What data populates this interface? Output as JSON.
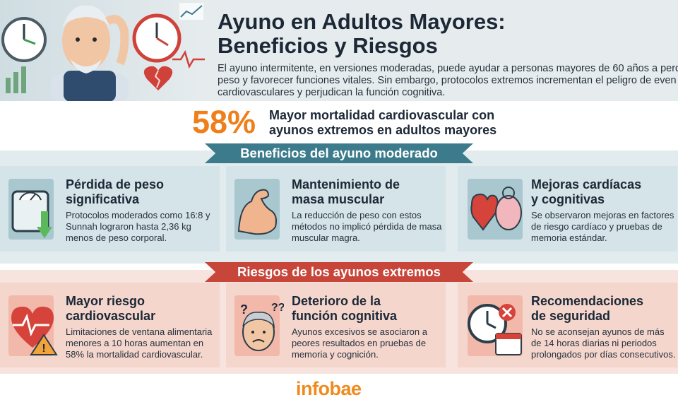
{
  "header": {
    "title_line1": "Ayuno en Adultos Mayores:",
    "title_line2": "Beneficios y Riesgos",
    "intro_line1": "El ayuno intermitente, en versiones moderadas, puede ayudar a personas mayores de 60 años a perd",
    "intro_line2": "peso y favorecer funciones vitales. Sin embargo, protocolos extremos incrementan el peligro de even",
    "intro_line3": "cardiovasculares y perjudican la función cognitiva."
  },
  "stat": {
    "value": "58%",
    "label_line1": "Mayor mortalidad cardiovascular con",
    "label_line2": "ayunos extremos en adultos mayores"
  },
  "benefits": {
    "heading": "Beneficios del ayuno moderado",
    "cards": [
      {
        "title_line1": "Pérdida de peso",
        "title_line2": "significativa",
        "text": "Protocolos moderados como 16:8 y Sunnah lograron hasta 2,36 kg menos de peso corporal.",
        "icon": "scale-icon"
      },
      {
        "title_line1": "Mantenimiento de",
        "title_line2": "masa muscular",
        "text": "La reducción de peso con estos métodos no implicó pérdida de masa muscular magra.",
        "icon": "muscle-arm-icon"
      },
      {
        "title_line1": "Mejoras cardíacas",
        "title_line2": "y cognitivas",
        "text": "Se observaron mejoras en factores de riesgo cardíaco y pruebas de memoria estándar.",
        "icon": "heart-brain-icon"
      }
    ]
  },
  "risks": {
    "heading": "Riesgos de los ayunos extremos",
    "cards": [
      {
        "title_line1": "Mayor riesgo",
        "title_line2": "cardiovascular",
        "text": "Limitaciones de ventana alimentaria menores a 10 horas aumentan en 58% la mortalidad cardiovascular.",
        "icon": "heart-warning-icon"
      },
      {
        "title_line1": "Deterioro de la",
        "title_line2": "función cognitiva",
        "text": "Ayunos excesivos se asociaron a peores resultados en pruebas de memoria y cognición.",
        "icon": "confused-person-icon"
      },
      {
        "title_line1": "Recomendaciones",
        "title_line2": "de seguridad",
        "text": "No se aconsejan ayunos de más de 14 horas diarias ni periodos prolongados por días consecutivos.",
        "icon": "clock-calendar-icon"
      }
    ]
  },
  "footer": {
    "logo": "infobae"
  },
  "colors": {
    "accent": "#ef7f1a",
    "benefit": "#3c7b8c",
    "risk": "#c8453a"
  }
}
